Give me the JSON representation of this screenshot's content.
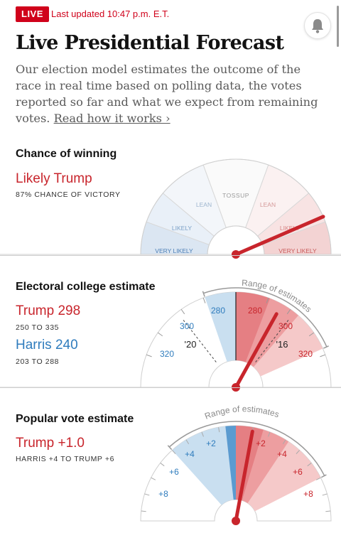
{
  "header": {
    "live_badge": "LIVE",
    "last_updated": "Last updated 10:47 p.m. E.T.",
    "title": "Live Presidential Forecast",
    "intro_text": "Our election model estimates the outcome of the race in real time based on polling data, the votes reported so far and what we expect from remaining votes. ",
    "read_more_link": "Read how it works ›",
    "bell_icon": "bell-icon"
  },
  "chance": {
    "title": "Chance of winning",
    "headline": "Likely Trump",
    "subline": "87% CHANCE OF VICTORY",
    "gauge_labels": {
      "tossup": "TOSSUP",
      "lean_left": "LEAN",
      "lean_right": "LEAN",
      "likely_left": "LIKELY",
      "likely_right": "LIKELY",
      "very_likely_left": "VERY LIKELY",
      "very_likely_right": "VERY LIKELY"
    },
    "trump_win_probability": 0.87
  },
  "electoral": {
    "title": "Electoral college estimate",
    "trump_label": "Trump 298",
    "trump_range": "250 TO 335",
    "harris_label": "Harris 240",
    "harris_range": "203 TO 288",
    "range_caption": "Range of estimates",
    "ticks": {
      "blue_280": "280",
      "blue_300": "300",
      "blue_320": "320",
      "red_280": "280",
      "red_300": "300",
      "red_320": "320"
    },
    "marker_20": "'20",
    "marker_16": "'16",
    "trump_estimate": 298,
    "trump_low": 250,
    "trump_high": 335
  },
  "popular": {
    "title": "Popular vote estimate",
    "headline": "Trump +1.0",
    "subline": "HARRIS +4 TO TRUMP +6",
    "range_caption": "Range of estimates",
    "ticks": {
      "blue_2": "+2",
      "blue_4": "+4",
      "blue_6": "+6",
      "blue_8": "+8",
      "red_2": "+2",
      "red_4": "+4",
      "red_6": "+6",
      "red_8": "+8"
    },
    "trump_margin": 1.0,
    "range_low": -4,
    "range_high": 6
  },
  "colors": {
    "trump_red": "#c8252c",
    "harris_blue": "#2f7cbd",
    "live_red": "#d0021b"
  }
}
